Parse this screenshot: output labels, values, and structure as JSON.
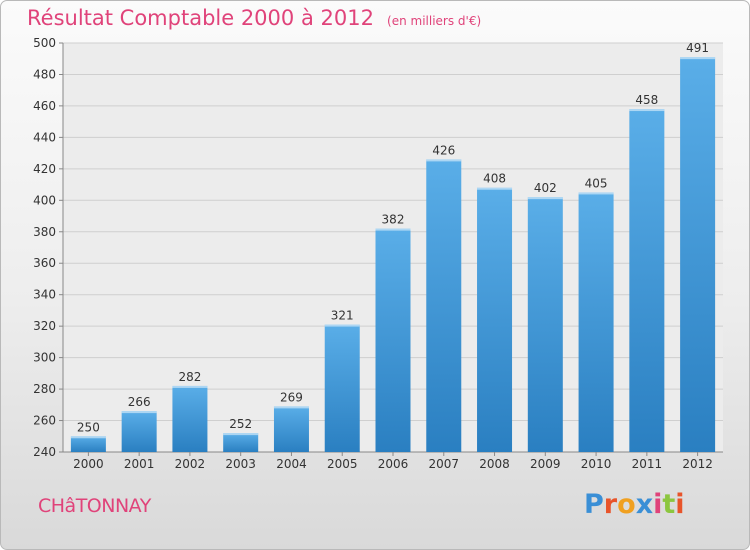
{
  "header": {
    "title": "Résultat Comptable 2000 à 2012",
    "subtitle": "(en milliers d'€)"
  },
  "footer": {
    "town": "CHâTONNAY",
    "logo_text": "Proxiti"
  },
  "colors": {
    "accent": "#e0437a",
    "bar_top": "#5aaee8",
    "bar_bottom": "#2a7fc1",
    "logo_letters": [
      "#3a8fd6",
      "#e8542a",
      "#f0a020",
      "#3a8fd6",
      "#e0437a",
      "#8cc63f",
      "#e8542a"
    ]
  },
  "chart_data": {
    "type": "bar",
    "categories": [
      "2000",
      "2001",
      "2002",
      "2003",
      "2004",
      "2005",
      "2006",
      "2007",
      "2008",
      "2009",
      "2010",
      "2011",
      "2012"
    ],
    "values": [
      250,
      266,
      282,
      252,
      269,
      321,
      382,
      426,
      408,
      402,
      405,
      458,
      491
    ],
    "ylim": [
      240,
      500
    ],
    "yticks": [
      240,
      260,
      280,
      300,
      320,
      340,
      360,
      380,
      400,
      420,
      440,
      460,
      480,
      500
    ],
    "grid": true,
    "data_labels": true
  }
}
